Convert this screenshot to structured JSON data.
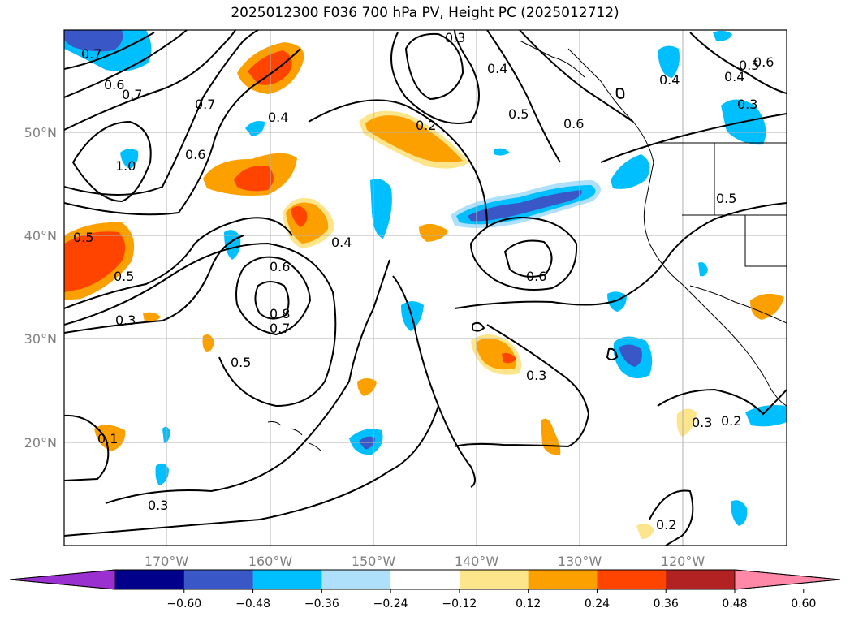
{
  "title": "2025012300 F036 700 hPa PV, Height PC (2025012712)",
  "map": {
    "lon_labels": [
      "170°W",
      "160°W",
      "150°W",
      "140°W",
      "130°W",
      "120°W"
    ],
    "lat_labels": [
      "50°N",
      "40°N",
      "30°N",
      "20°N"
    ],
    "contour_labels": [
      "0.7",
      "0.6",
      "0.7",
      "0.7",
      "1.0",
      "0.6",
      "0.5",
      "0.5",
      "0.3",
      "0.4",
      "0.4",
      "0.6",
      "0.8",
      "0.7",
      "0.5",
      "0.2",
      "0.3",
      "0.4",
      "0.5",
      "0.6",
      "0.4",
      "0.3",
      "0.4",
      "0.5",
      "0.6",
      "0.5",
      "0.6",
      "0.3",
      "0.3",
      "0.2",
      "0.2",
      "0.3",
      "0.1"
    ],
    "fill_colors": {
      "blue_dark": "#3a57c8",
      "blue_mid": "#00bfff",
      "blue_light": "#aee0fb",
      "yellow": "#fce58a",
      "orange": "#fca000",
      "red_orange": "#ff4400"
    }
  },
  "colorbar": {
    "ticks": [
      "−0.60",
      "−0.48",
      "−0.36",
      "−0.24",
      "−0.12",
      "0.12",
      "0.24",
      "0.36",
      "0.48",
      "0.60"
    ],
    "colors": [
      "#9b30d0",
      "#00008b",
      "#3a57c8",
      "#00bfff",
      "#aee0fb",
      "#ffffff",
      "#fce58a",
      "#fca000",
      "#ff4400",
      "#b22222",
      "#ff88a8"
    ]
  }
}
